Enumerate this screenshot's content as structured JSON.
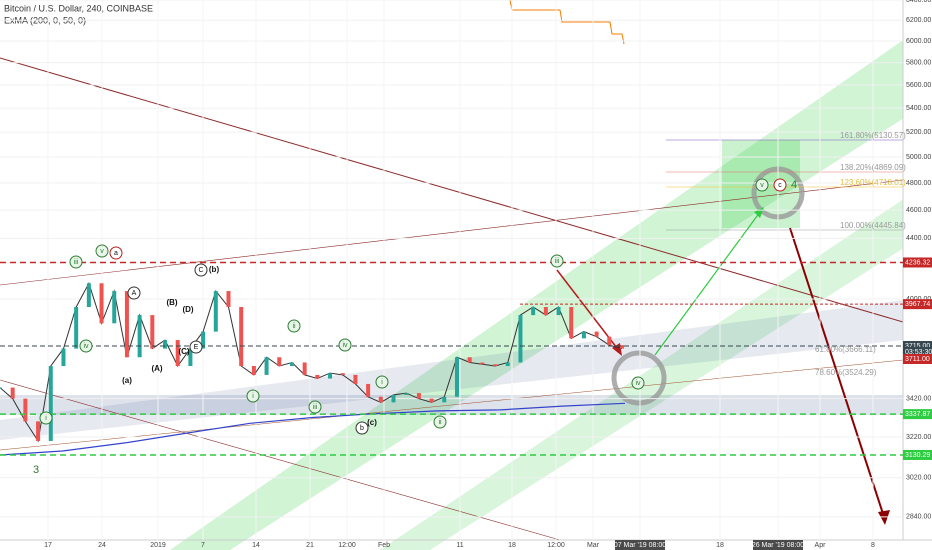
{
  "chart_data": {
    "type": "line",
    "title": "Bitcoin / U.S. Dollar, 240, COINBASE",
    "subtitle": "ExMA (200, 0, 50, 0)",
    "log_scale": true,
    "ylim": [
      2782,
      6400
    ],
    "yticks": [
      {
        "value": 6400,
        "label": "6400.00"
      },
      {
        "value": 6200,
        "label": "6200.00"
      },
      {
        "value": 6000,
        "label": "6000.00"
      },
      {
        "value": 5800,
        "label": "5800.00"
      },
      {
        "value": 5600,
        "label": "5600.00"
      },
      {
        "value": 5400,
        "label": "5400.00"
      },
      {
        "value": 5200,
        "label": "5200.00"
      },
      {
        "value": 5000,
        "label": "5000.00"
      },
      {
        "value": 4800,
        "label": "4800.00"
      },
      {
        "value": 4600,
        "label": "4600.00"
      },
      {
        "value": 4400,
        "label": "4400.00"
      },
      {
        "value": 4000,
        "label": "4000.00"
      },
      {
        "value": 3420,
        "label": "3420.00"
      },
      {
        "value": 3220,
        "label": "3220.00"
      },
      {
        "value": 3020,
        "label": "3020.00"
      },
      {
        "value": 2840,
        "label": "2840.00"
      }
    ],
    "time_labels": [
      "17",
      "24",
      "2019",
      "7",
      "14",
      "21",
      "12:00",
      "Feb",
      "11",
      "18",
      "12:00",
      "Mar",
      "07 Mar '19   08:00",
      "18",
      "26 Mar '19   08:00",
      "Apr",
      "8"
    ],
    "series": [
      {
        "name": "Bitcoin / U.S. Dollar",
        "color": "#333333",
        "values": [
          3480,
          3420,
          3300,
          3200,
          3600,
          3700,
          3950,
          4100,
          3850,
          4050,
          3650,
          3900,
          3700,
          3750,
          3600,
          3700,
          3800,
          4050,
          3950,
          3600,
          3550,
          3650,
          3600,
          3620,
          3550,
          3530,
          3560,
          3550,
          3500,
          3430,
          3400,
          3440,
          3450,
          3420,
          3400,
          3430,
          3650,
          3620,
          3610,
          3600,
          3620,
          3900,
          3950,
          3900,
          3950,
          3760,
          3800,
          3770,
          3720,
          3700
        ]
      },
      {
        "name": "ExMA (200, 0, 50, 0)",
        "color": "#3344cc",
        "values": [
          3130,
          3150,
          3190,
          3240,
          3290,
          3320,
          3340,
          3355,
          3360,
          3380,
          3395
        ]
      }
    ],
    "price_tags": [
      {
        "value": 4236.32,
        "label": "4236.32",
        "color": "#c62828"
      },
      {
        "value": 3967.74,
        "label": "3967.74",
        "color": "#c62828"
      },
      {
        "value": 3715,
        "label": "3715.00",
        "color": "#37474f"
      },
      {
        "value": 3680,
        "label": "03:53:30",
        "color": "#37474f"
      },
      {
        "value": 3640,
        "label": "3711.00",
        "color": "#c62828"
      },
      {
        "value": 3337.87,
        "label": "3337.87",
        "color": "#2ecc40"
      },
      {
        "value": 3130.29,
        "label": "3130.29",
        "color": "#2ecc40"
      }
    ],
    "fib_labels": [
      "161.80%(5130.57)",
      "138.20%(4869.09)",
      "123.60%(4718.01)",
      "100.00%(4445.84)",
      "61.80%(3666.11)",
      "78.60%(3524.29)"
    ],
    "wave_labels": [
      "iii",
      "v",
      "a",
      "iv",
      "i",
      "3",
      "(a)",
      "A",
      "(B)",
      "(D)",
      "(A)",
      "(C)",
      "E",
      "C",
      "(b)",
      "ii",
      "iv",
      "i",
      "iii",
      "b",
      "(c)",
      "ii",
      "i",
      "iii",
      "iv",
      "v",
      "c",
      "4"
    ]
  }
}
